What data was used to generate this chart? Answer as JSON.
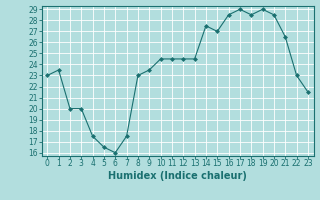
{
  "x": [
    0,
    1,
    2,
    3,
    4,
    5,
    6,
    7,
    8,
    9,
    10,
    11,
    12,
    13,
    14,
    15,
    16,
    17,
    18,
    19,
    20,
    21,
    22,
    23
  ],
  "y": [
    23,
    23.5,
    20,
    20,
    17.5,
    16.5,
    16,
    17.5,
    23,
    23.5,
    24.5,
    24.5,
    24.5,
    24.5,
    27.5,
    27,
    28.5,
    29,
    28.5,
    29,
    28.5,
    26.5,
    23,
    21.5
  ],
  "line_color": "#1a7070",
  "marker": "D",
  "marker_size": 2,
  "background_color": "#b2dede",
  "grid_color": "#ffffff",
  "tick_color": "#1a7070",
  "label_color": "#1a7070",
  "xlabel": "Humidex (Indice chaleur)",
  "ylim": [
    16,
    29
  ],
  "yticks": [
    16,
    17,
    18,
    19,
    20,
    21,
    22,
    23,
    24,
    25,
    26,
    27,
    28,
    29
  ],
  "xticks": [
    0,
    1,
    2,
    3,
    4,
    5,
    6,
    7,
    8,
    9,
    10,
    11,
    12,
    13,
    14,
    15,
    16,
    17,
    18,
    19,
    20,
    21,
    22,
    23
  ],
  "xlabel_fontsize": 7,
  "tick_fontsize": 5.5
}
